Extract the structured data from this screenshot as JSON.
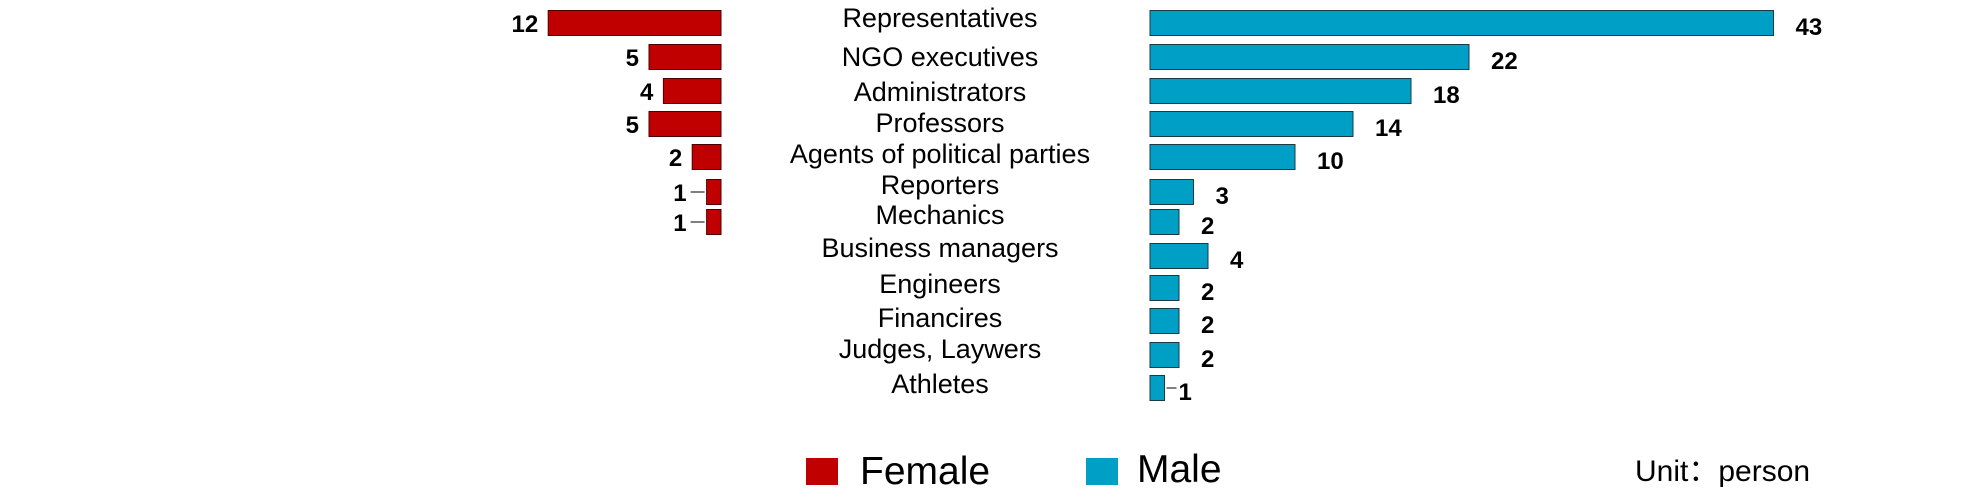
{
  "chart_data": {
    "type": "bar",
    "orientation": "horizontal-butterfly",
    "categories": [
      "Representatives",
      "NGO executives",
      "Administrators",
      "Professors",
      "Agents of political parties",
      "Reporters",
      "Mechanics",
      "Business managers",
      "Engineers",
      "Financires",
      "Judges, Laywers",
      "Athletes"
    ],
    "series": [
      {
        "name": "Female",
        "color": "#c00000",
        "values": [
          12,
          5,
          4,
          5,
          2,
          1,
          1,
          null,
          null,
          null,
          null,
          null
        ]
      },
      {
        "name": "Male",
        "color": "#00a0c6",
        "values": [
          43,
          22,
          18,
          14,
          10,
          3,
          2,
          4,
          2,
          2,
          2,
          1
        ]
      }
    ],
    "title": "",
    "unit_label": "Unit：person",
    "legend_position": "bottom",
    "grid": false
  }
}
